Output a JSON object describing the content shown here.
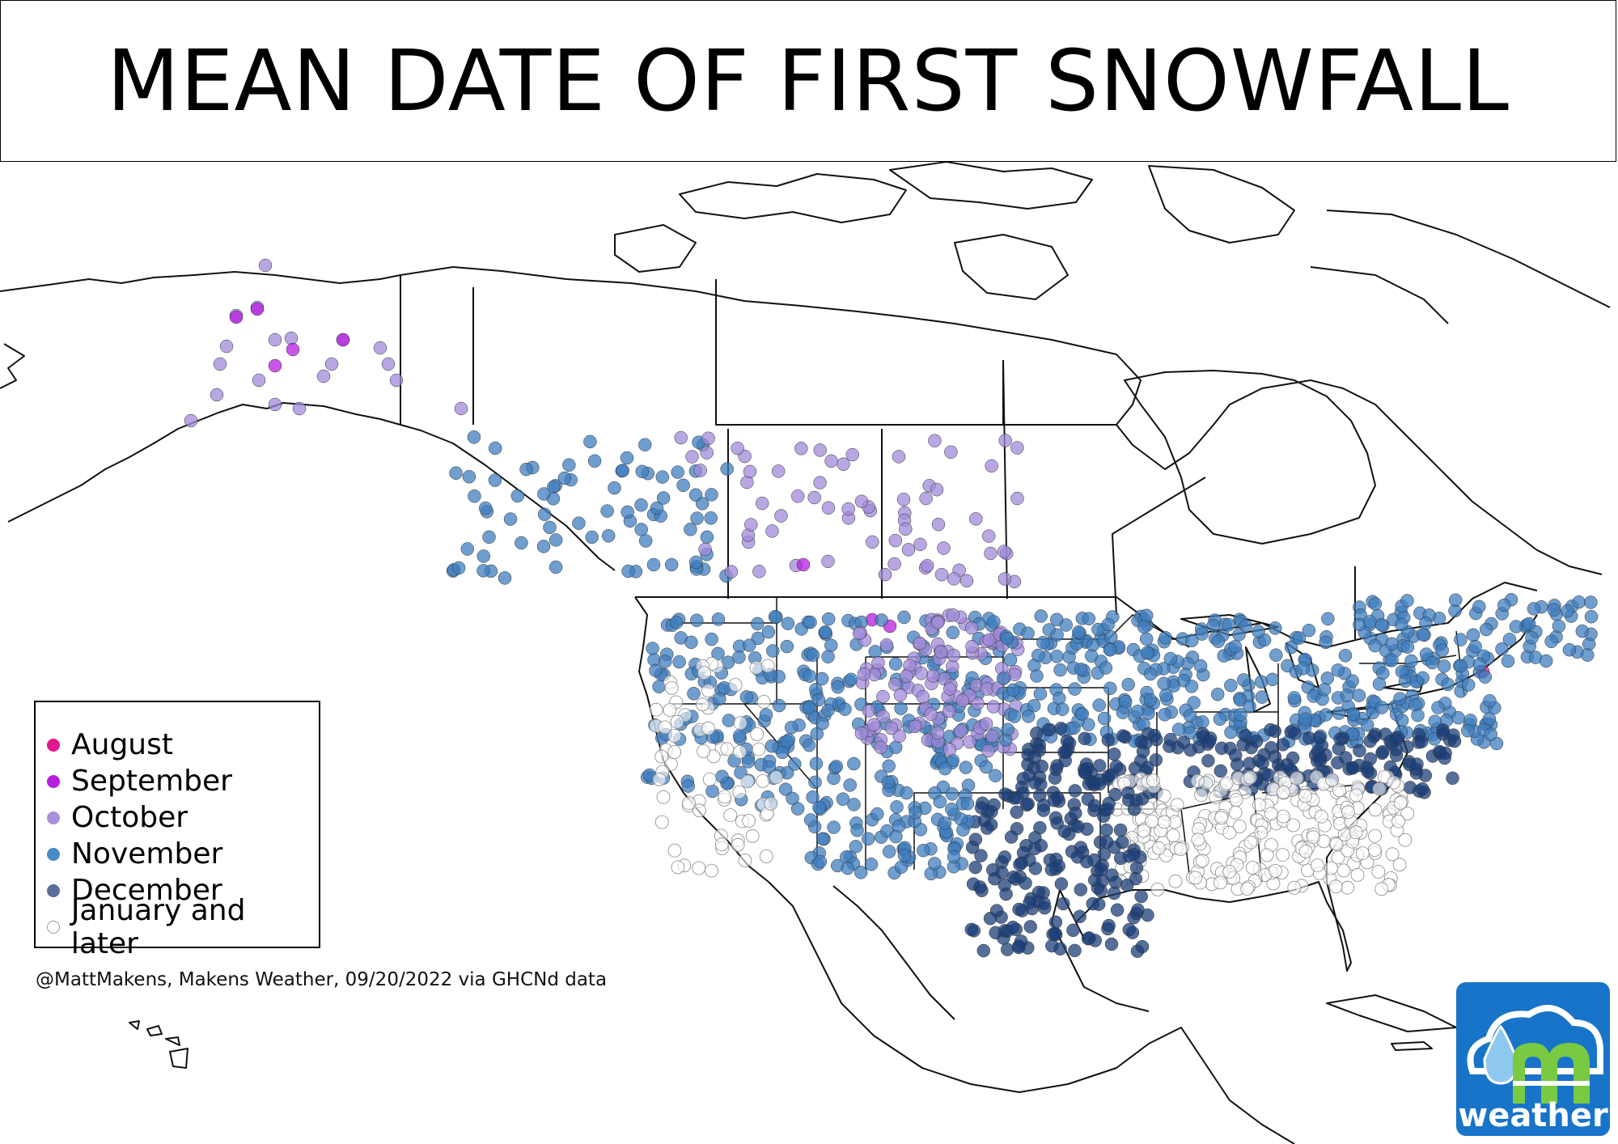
{
  "title": "MEAN DATE OF FIRST SNOWFALL",
  "legend": [
    {
      "label": "August",
      "color": "#e0188c"
    },
    {
      "label": "September",
      "color": "#b81ee0"
    },
    {
      "label": "October",
      "color": "#a791dc"
    },
    {
      "label": "November",
      "color": "#4a8ac8"
    },
    {
      "label": "December",
      "color": "#5a6f98"
    },
    {
      "label": "January and later",
      "color": "#ffffff"
    }
  ],
  "credit": "@MattMakens, Makens Weather, 09/20/2022 via GHCNd data",
  "logo": {
    "letter": "m",
    "word": "weather"
  },
  "colors": {
    "dark_blue": "#1c3f78",
    "mid_blue": "#3f7ebf",
    "light_purple": "#a08ad8",
    "logo_bg": "#1874c8",
    "logo_green": "#7ac943"
  }
}
